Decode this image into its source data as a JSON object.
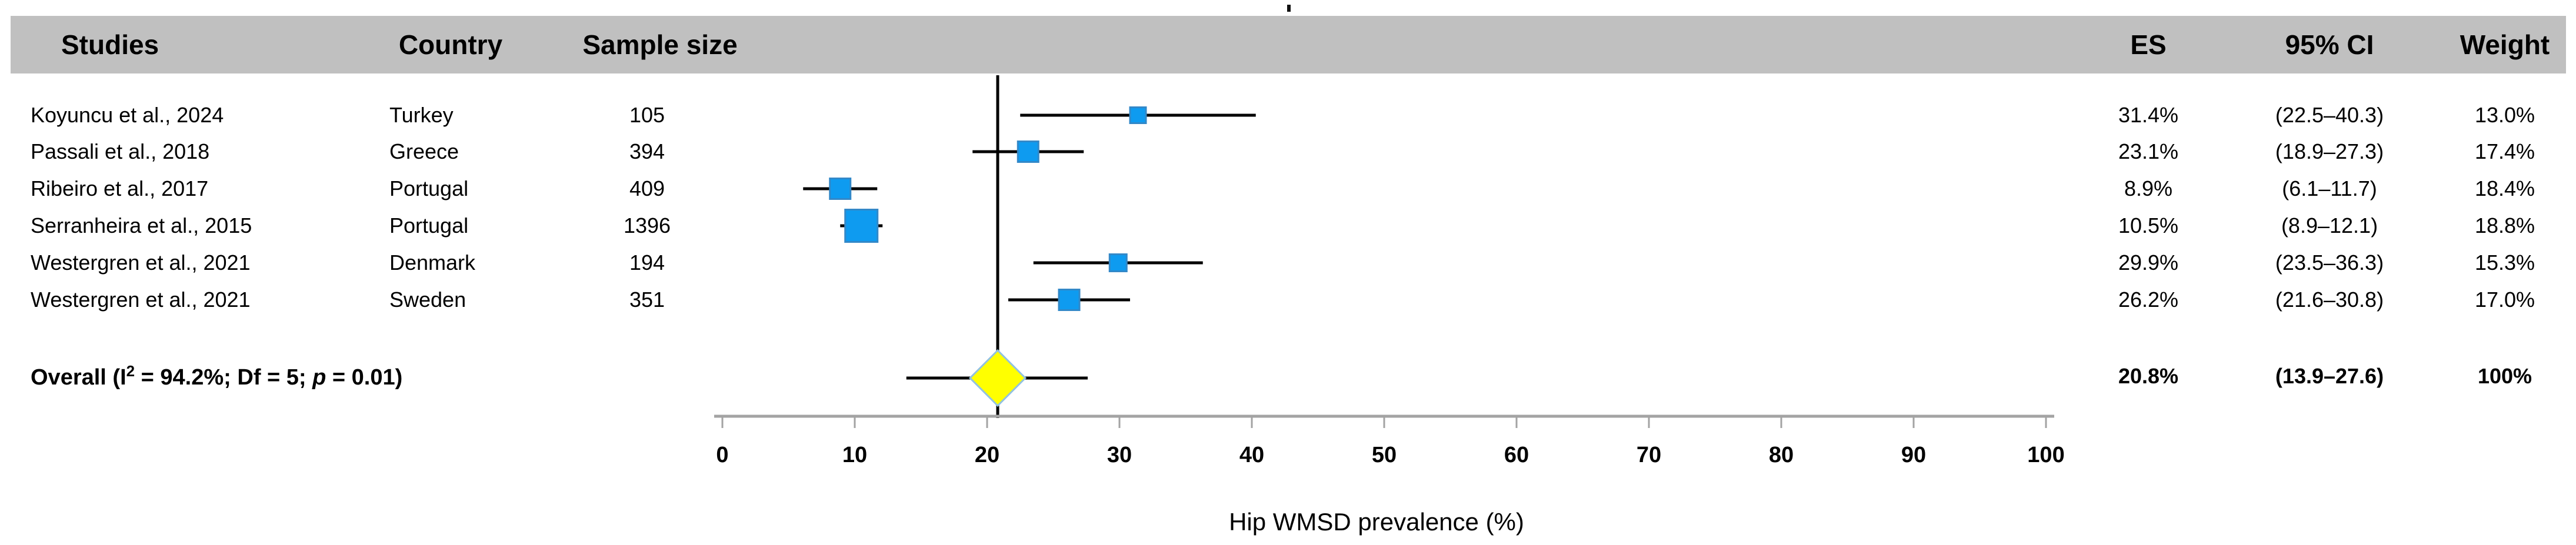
{
  "header": {
    "studies": "Studies",
    "country": "Country",
    "sample_size": "Sample size",
    "es": "ES",
    "ci": "95% CI",
    "weight": "Weight"
  },
  "overall": {
    "label_prefix": "Overall (I",
    "label_sup": "2",
    "label_mid": " = 94.2%;  Df = 5;  ",
    "label_p": "p",
    "label_suffix": " = 0.01)",
    "es_label": "20.8%",
    "ci_label": "(13.9–27.6)",
    "weight_label": "100%"
  },
  "axis_label": "Hip WMSD prevalence (%)",
  "chart_data": {
    "type": "forest",
    "title": "",
    "xlabel": "Hip WMSD prevalence (%)",
    "xlim": [
      0,
      100
    ],
    "xticks": [
      0,
      10,
      20,
      30,
      40,
      50,
      60,
      70,
      80,
      90,
      100
    ],
    "pooled_line_value": 20.8,
    "studies": [
      {
        "study": "Koyuncu et al., 2024",
        "country": "Turkey",
        "n": 105,
        "n_label": "105",
        "es": 31.4,
        "ci_low": 22.5,
        "ci_high": 40.3,
        "weight": 13.0,
        "es_label": "31.4%",
        "ci_label": "(22.5–40.3)",
        "weight_label": "13.0%"
      },
      {
        "study": "Passali et al., 2018",
        "country": "Greece",
        "n": 394,
        "n_label": "394",
        "es": 23.1,
        "ci_low": 18.9,
        "ci_high": 27.3,
        "weight": 17.4,
        "es_label": "23.1%",
        "ci_label": "(18.9–27.3)",
        "weight_label": "17.4%"
      },
      {
        "study": "Ribeiro et al., 2017",
        "country": "Portugal",
        "n": 409,
        "n_label": "409",
        "es": 8.9,
        "ci_low": 6.1,
        "ci_high": 11.7,
        "weight": 18.4,
        "es_label": "8.9%",
        "ci_label": "(6.1–11.7)",
        "weight_label": "18.4%"
      },
      {
        "study": "Serranheira et al., 2015",
        "country": "Portugal",
        "n": 1396,
        "n_label": "1396",
        "es": 10.5,
        "ci_low": 8.9,
        "ci_high": 12.1,
        "weight": 18.8,
        "es_label": "10.5%",
        "ci_label": "(8.9–12.1)",
        "weight_label": "18.8%"
      },
      {
        "study": "Westergren et al., 2021",
        "country": "Denmark",
        "n": 194,
        "n_label": "194",
        "es": 29.9,
        "ci_low": 23.5,
        "ci_high": 36.3,
        "weight": 15.3,
        "es_label": "29.9%",
        "ci_label": "(23.5–36.3)",
        "weight_label": "15.3%"
      },
      {
        "study": "Westergren et al., 2021",
        "country": "Sweden",
        "n": 351,
        "n_label": "351",
        "es": 26.2,
        "ci_low": 21.6,
        "ci_high": 30.8,
        "weight": 17.0,
        "es_label": "26.2%",
        "ci_label": "(21.6–30.8)",
        "weight_label": "17.0%"
      }
    ],
    "overall": {
      "es": 20.8,
      "ci_low": 13.9,
      "ci_high": 27.6,
      "weight": 100,
      "i_squared": "94.2%",
      "df": 5,
      "p": "0.01"
    },
    "marker_px": [
      27,
      35,
      35,
      55,
      29,
      35
    ],
    "legend": null,
    "grid": false,
    "colors": {
      "marker_fill": "#0e9bf0",
      "marker_border": "#3288c8",
      "diamond_fill": "#ffff00",
      "diamond_border": "#92c1e0",
      "axis": "#a3a3a3",
      "header_band": "#c0c0c0",
      "ci_line": "#000000"
    }
  }
}
